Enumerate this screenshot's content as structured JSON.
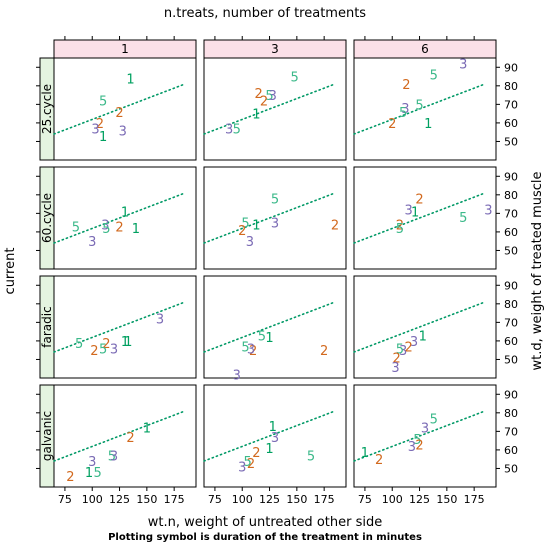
{
  "chart_data": {
    "type": "scatter",
    "title": "n.treats, number of treatments",
    "xlabel": "wt.n, weight of untreated other side",
    "ylabel_left": "current",
    "ylabel_right": "wt.d, weight of treated muscle",
    "subtitle": "Plotting symbol is duration of the treatment in minutes",
    "x_range": [
      65,
      195
    ],
    "y_range": [
      40,
      95
    ],
    "x_ticks": [
      75,
      100,
      125,
      150,
      175
    ],
    "y_ticks": [
      50,
      60,
      70,
      80,
      90
    ],
    "columns": [
      "1",
      "3",
      "6"
    ],
    "rows": [
      "25.cycle",
      "60.cycle",
      "faradic",
      "galvanic"
    ],
    "symbol_colors": {
      "1": "#00a060",
      "2": "#d2691e",
      "3": "#7b6bb5",
      "5": "#3cb98a"
    },
    "reference_line": {
      "x": [
        65,
        185
      ],
      "y": [
        54,
        81
      ],
      "style": "dotted",
      "color": "#009966"
    },
    "panels": [
      {
        "row": "25.cycle",
        "col": "1",
        "points": [
          {
            "s": "1",
            "x": 135,
            "y": 84
          },
          {
            "s": "5",
            "x": 110,
            "y": 72
          },
          {
            "s": "2",
            "x": 125,
            "y": 66
          },
          {
            "s": "2",
            "x": 107,
            "y": 60
          },
          {
            "s": "3",
            "x": 103,
            "y": 57
          },
          {
            "s": "3",
            "x": 128,
            "y": 56
          },
          {
            "s": "1",
            "x": 110,
            "y": 53
          }
        ]
      },
      {
        "row": "25.cycle",
        "col": "3",
        "points": [
          {
            "s": "5",
            "x": 148,
            "y": 85
          },
          {
            "s": "2",
            "x": 115,
            "y": 76
          },
          {
            "s": "5",
            "x": 125,
            "y": 75
          },
          {
            "s": "3",
            "x": 128,
            "y": 75
          },
          {
            "s": "2",
            "x": 120,
            "y": 72
          },
          {
            "s": "1",
            "x": 113,
            "y": 65
          },
          {
            "s": "3",
            "x": 88,
            "y": 57
          },
          {
            "s": "5",
            "x": 95,
            "y": 57
          }
        ]
      },
      {
        "row": "25.cycle",
        "col": "6",
        "points": [
          {
            "s": "3",
            "x": 165,
            "y": 92
          },
          {
            "s": "5",
            "x": 138,
            "y": 86
          },
          {
            "s": "2",
            "x": 113,
            "y": 81
          },
          {
            "s": "5",
            "x": 125,
            "y": 70
          },
          {
            "s": "3",
            "x": 112,
            "y": 68
          },
          {
            "s": "5",
            "x": 110,
            "y": 66
          },
          {
            "s": "2",
            "x": 100,
            "y": 60
          },
          {
            "s": "1",
            "x": 133,
            "y": 60
          }
        ]
      },
      {
        "row": "60.cycle",
        "col": "1",
        "points": [
          {
            "s": "1",
            "x": 130,
            "y": 71
          },
          {
            "s": "5",
            "x": 85,
            "y": 63
          },
          {
            "s": "3",
            "x": 112,
            "y": 64
          },
          {
            "s": "5",
            "x": 113,
            "y": 62
          },
          {
            "s": "2",
            "x": 125,
            "y": 63
          },
          {
            "s": "1",
            "x": 140,
            "y": 62
          },
          {
            "s": "3",
            "x": 100,
            "y": 55
          }
        ]
      },
      {
        "row": "60.cycle",
        "col": "3",
        "points": [
          {
            "s": "5",
            "x": 130,
            "y": 78
          },
          {
            "s": "5",
            "x": 103,
            "y": 65
          },
          {
            "s": "1",
            "x": 113,
            "y": 64
          },
          {
            "s": "3",
            "x": 130,
            "y": 65
          },
          {
            "s": "2",
            "x": 100,
            "y": 61
          },
          {
            "s": "3",
            "x": 107,
            "y": 55
          },
          {
            "s": "2",
            "x": 185,
            "y": 64
          }
        ]
      },
      {
        "row": "60.cycle",
        "col": "6",
        "points": [
          {
            "s": "2",
            "x": 125,
            "y": 78
          },
          {
            "s": "3",
            "x": 115,
            "y": 72
          },
          {
            "s": "1",
            "x": 121,
            "y": 71
          },
          {
            "s": "5",
            "x": 165,
            "y": 68
          },
          {
            "s": "3",
            "x": 188,
            "y": 72
          },
          {
            "s": "2",
            "x": 107,
            "y": 64
          },
          {
            "s": "5",
            "x": 107,
            "y": 62
          }
        ]
      },
      {
        "row": "faradic",
        "col": "1",
        "points": [
          {
            "s": "3",
            "x": 162,
            "y": 72
          },
          {
            "s": "5",
            "x": 88,
            "y": 59
          },
          {
            "s": "2",
            "x": 113,
            "y": 59
          },
          {
            "s": "1",
            "x": 130,
            "y": 60
          },
          {
            "s": "1",
            "x": 133,
            "y": 60
          },
          {
            "s": "5",
            "x": 110,
            "y": 56
          },
          {
            "s": "3",
            "x": 120,
            "y": 56
          },
          {
            "s": "2",
            "x": 102,
            "y": 55
          }
        ]
      },
      {
        "row": "faradic",
        "col": "3",
        "points": [
          {
            "s": "5",
            "x": 118,
            "y": 63
          },
          {
            "s": "1",
            "x": 125,
            "y": 62
          },
          {
            "s": "5",
            "x": 103,
            "y": 57
          },
          {
            "s": "2",
            "x": 110,
            "y": 55
          },
          {
            "s": "3",
            "x": 108,
            "y": 56
          },
          {
            "s": "2",
            "x": 175,
            "y": 55
          },
          {
            "s": "3",
            "x": 95,
            "y": 42
          }
        ]
      },
      {
        "row": "faradic",
        "col": "6",
        "points": [
          {
            "s": "1",
            "x": 128,
            "y": 63
          },
          {
            "s": "3",
            "x": 120,
            "y": 60
          },
          {
            "s": "2",
            "x": 115,
            "y": 57
          },
          {
            "s": "3",
            "x": 110,
            "y": 55
          },
          {
            "s": "5",
            "x": 107,
            "y": 56
          },
          {
            "s": "2",
            "x": 104,
            "y": 51
          },
          {
            "s": "3",
            "x": 103,
            "y": 46
          }
        ]
      },
      {
        "row": "galvanic",
        "col": "1",
        "points": [
          {
            "s": "1",
            "x": 150,
            "y": 72
          },
          {
            "s": "2",
            "x": 135,
            "y": 67
          },
          {
            "s": "5",
            "x": 118,
            "y": 57
          },
          {
            "s": "3",
            "x": 120,
            "y": 57
          },
          {
            "s": "3",
            "x": 100,
            "y": 54
          },
          {
            "s": "1",
            "x": 97,
            "y": 48
          },
          {
            "s": "5",
            "x": 105,
            "y": 48
          },
          {
            "s": "2",
            "x": 80,
            "y": 46
          }
        ]
      },
      {
        "row": "galvanic",
        "col": "3",
        "points": [
          {
            "s": "1",
            "x": 128,
            "y": 73
          },
          {
            "s": "3",
            "x": 130,
            "y": 67
          },
          {
            "s": "1",
            "x": 125,
            "y": 61
          },
          {
            "s": "2",
            "x": 113,
            "y": 59
          },
          {
            "s": "5",
            "x": 163,
            "y": 57
          },
          {
            "s": "5",
            "x": 105,
            "y": 54
          },
          {
            "s": "2",
            "x": 108,
            "y": 53
          },
          {
            "s": "3",
            "x": 100,
            "y": 51
          }
        ]
      },
      {
        "row": "galvanic",
        "col": "6",
        "points": [
          {
            "s": "5",
            "x": 138,
            "y": 77
          },
          {
            "s": "3",
            "x": 130,
            "y": 72
          },
          {
            "s": "5",
            "x": 123,
            "y": 66
          },
          {
            "s": "2",
            "x": 125,
            "y": 63
          },
          {
            "s": "3",
            "x": 118,
            "y": 62
          },
          {
            "s": "1",
            "x": 75,
            "y": 59
          },
          {
            "s": "2",
            "x": 88,
            "y": 55
          }
        ]
      }
    ]
  }
}
